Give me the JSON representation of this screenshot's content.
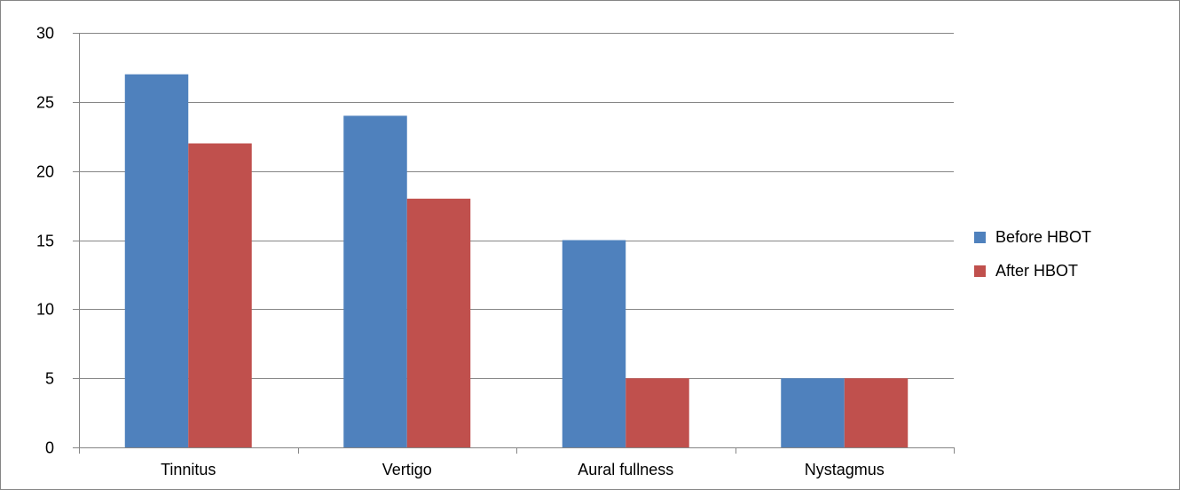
{
  "chart_data": {
    "type": "bar",
    "title": "",
    "xlabel": "",
    "ylabel": "",
    "categories": [
      "Tinnitus",
      "Vertigo",
      "Aural fullness",
      "Nystagmus"
    ],
    "series": [
      {
        "name": "Before HBOT",
        "color": "#4F81BD",
        "values": [
          27,
          24,
          15,
          5
        ]
      },
      {
        "name": "After HBOT",
        "color": "#C0504D",
        "values": [
          22,
          18,
          5,
          5
        ]
      }
    ],
    "ylim": [
      0,
      30
    ],
    "yticks": [
      0,
      5,
      10,
      15,
      20,
      25,
      30
    ],
    "grid": true,
    "legend_position": "right"
  }
}
